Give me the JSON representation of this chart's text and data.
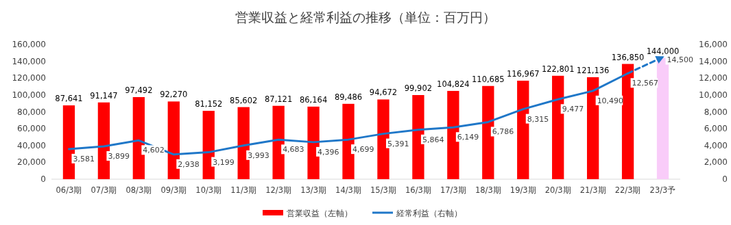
{
  "chart_data": {
    "type": "bar",
    "title": "営業収益と経常利益の推移（単位：百万円）",
    "categories": [
      "06/3期",
      "07/3期",
      "08/3期",
      "09/3期",
      "10/3期",
      "11/3期",
      "12/3期",
      "13/3期",
      "14/3期",
      "15/3期",
      "16/3期",
      "17/3期",
      "18/3期",
      "19/3期",
      "20/3期",
      "21/3期",
      "22/3期",
      "23/3予"
    ],
    "series": [
      {
        "name": "営業収益（左軸）",
        "color": "#ff0000",
        "colors": [
          "#ff0000",
          "#ff0000",
          "#ff0000",
          "#ff0000",
          "#ff0000",
          "#ff0000",
          "#ff0000",
          "#ff0000",
          "#ff0000",
          "#ff0000",
          "#ff0000",
          "#ff0000",
          "#ff0000",
          "#ff0000",
          "#ff0000",
          "#ff0000",
          "#ff0000",
          "#f9ccf9"
        ],
        "values": [
          87641,
          91147,
          97492,
          92270,
          81152,
          85602,
          87121,
          86164,
          89486,
          94672,
          99902,
          104824,
          110685,
          116967,
          122801,
          121136,
          136850,
          144000
        ],
        "value_labels": [
          "87,641",
          "91,147",
          "97,492",
          "92,270",
          "81,152",
          "85,602",
          "87,121",
          "86,164",
          "89,486",
          "94,672",
          "99,902",
          "104,824",
          "110,685",
          "116,967",
          "122,801",
          "121,136",
          "136,850",
          "144,000"
        ]
      },
      {
        "name": "経常利益（右軸）",
        "type": "line",
        "axis": "y2",
        "color": "#1f77c8",
        "values": [
          3581,
          3899,
          4602,
          2938,
          3199,
          3993,
          4683,
          4396,
          4699,
          5391,
          5864,
          6149,
          6786,
          8315,
          9477,
          10490,
          12567,
          null
        ],
        "value_labels": [
          "3,581",
          "3,899",
          "4,602",
          "2,938",
          "3,199",
          "3,993",
          "4,683",
          "4,396",
          "4,699",
          "5,391",
          "5,864",
          "6,149",
          "6,786",
          "8,315",
          "9,477",
          "10,490",
          "12,567",
          null
        ]
      },
      {
        "type": "line",
        "axis": "y2",
        "color": "#1f77c8",
        "line_style": "dashed",
        "values": [
          null,
          null,
          null,
          null,
          null,
          null,
          null,
          null,
          null,
          null,
          null,
          null,
          null,
          null,
          null,
          null,
          12567,
          14500
        ],
        "value_labels": [
          null,
          null,
          null,
          null,
          null,
          null,
          null,
          null,
          null,
          null,
          null,
          null,
          null,
          null,
          null,
          null,
          null,
          "14,500"
        ]
      }
    ],
    "ylim": [
      0,
      160000
    ],
    "yticks": [
      {
        "value": 0,
        "label": "0"
      },
      {
        "value": 20000,
        "label": "20,000"
      },
      {
        "value": 40000,
        "label": "40,000"
      },
      {
        "value": 60000,
        "label": "60,000"
      },
      {
        "value": 80000,
        "label": "80,000"
      },
      {
        "value": 100000,
        "label": "100,000"
      },
      {
        "value": 120000,
        "label": "120,000"
      },
      {
        "value": 140000,
        "label": "140,000"
      },
      {
        "value": 160000,
        "label": "160,000"
      }
    ],
    "y2lim": [
      0,
      16000
    ],
    "y2ticks": [
      {
        "value": 0,
        "label": "0"
      },
      {
        "value": 2000,
        "label": "2,000"
      },
      {
        "value": 4000,
        "label": "4,000"
      },
      {
        "value": 6000,
        "label": "6,000"
      },
      {
        "value": 8000,
        "label": "8,000"
      },
      {
        "value": 10000,
        "label": "10,000"
      },
      {
        "value": 12000,
        "label": "12,000"
      },
      {
        "value": 14000,
        "label": "14,000"
      },
      {
        "value": 16000,
        "label": "16,000"
      }
    ],
    "legend": "bottom"
  }
}
